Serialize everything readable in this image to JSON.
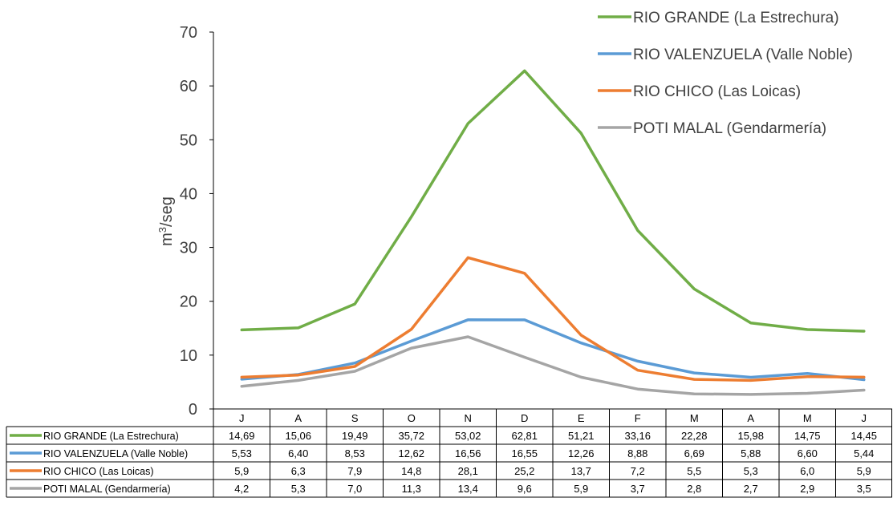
{
  "chart_data": {
    "type": "line",
    "title": "",
    "xlabel": "",
    "ylabel": "m³/seg",
    "ylim": [
      0,
      70
    ],
    "yticks": [
      0,
      10,
      20,
      30,
      40,
      50,
      60,
      70
    ],
    "grid": false,
    "legend_position": "top-right",
    "categories": [
      "J",
      "A",
      "S",
      "O",
      "N",
      "D",
      "E",
      "F",
      "M",
      "A",
      "M",
      "J"
    ],
    "series": [
      {
        "name": "RIO GRANDE (La Estrechura)",
        "color": "#70AD47",
        "values": [
          14.69,
          15.06,
          19.49,
          35.72,
          53.02,
          62.81,
          51.21,
          33.16,
          22.28,
          15.98,
          14.75,
          14.45
        ],
        "table_values": [
          "14,69",
          "15,06",
          "19,49",
          "35,72",
          "53,02",
          "62,81",
          "51,21",
          "33,16",
          "22,28",
          "15,98",
          "14,75",
          "14,45"
        ]
      },
      {
        "name": "RIO VALENZUELA (Valle Noble)",
        "color": "#5B9BD5",
        "values": [
          5.53,
          6.4,
          8.53,
          12.62,
          16.56,
          16.55,
          12.26,
          8.88,
          6.69,
          5.88,
          6.6,
          5.44
        ],
        "table_values": [
          "5,53",
          "6,40",
          "8,53",
          "12,62",
          "16,56",
          "16,55",
          "12,26",
          "8,88",
          "6,69",
          "5,88",
          "6,60",
          "5,44"
        ]
      },
      {
        "name": "RIO CHICO (Las Loicas)",
        "color": "#ED7D31",
        "values": [
          5.9,
          6.3,
          7.9,
          14.8,
          28.1,
          25.2,
          13.7,
          7.2,
          5.5,
          5.3,
          6.0,
          5.9
        ],
        "table_values": [
          "5,9",
          "6,3",
          "7,9",
          "14,8",
          "28,1",
          "25,2",
          "13,7",
          "7,2",
          "5,5",
          "5,3",
          "6,0",
          "5,9"
        ]
      },
      {
        "name": "POTI MALAL (Gendarmería)",
        "color": "#A5A5A5",
        "values": [
          4.2,
          5.3,
          7.0,
          11.3,
          13.4,
          9.6,
          5.9,
          3.7,
          2.8,
          2.7,
          2.9,
          3.5
        ],
        "table_values": [
          "4,2",
          "5,3",
          "7,0",
          "11,3",
          "13,4",
          "9,6",
          "5,9",
          "3,7",
          "2,8",
          "2,7",
          "2,9",
          "3,5"
        ]
      }
    ]
  }
}
